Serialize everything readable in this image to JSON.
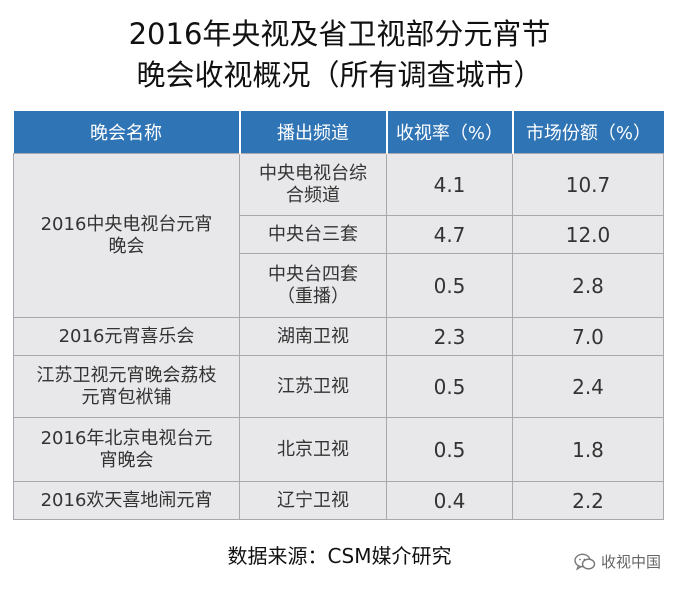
{
  "title": {
    "line1": "2016年央视及省卫视部分元宵节",
    "line2": "晚会收视概况（所有调查城市）"
  },
  "table": {
    "headers": [
      "晚会名称",
      "播出频道",
      "收视率（%）",
      "市场份额（%）"
    ],
    "rows": [
      {
        "program": "2016中央电视台元宵晚会",
        "channel": "中央电视台综合频道",
        "rating": "4.1",
        "share": "10.7"
      },
      {
        "program": "",
        "channel": "中央台三套",
        "rating": "4.7",
        "share": "12.0"
      },
      {
        "program": "",
        "channel": "中央台四套（重播）",
        "rating": "0.5",
        "share": "2.8"
      },
      {
        "program": "2016元宵喜乐会",
        "channel": "湖南卫视",
        "rating": "2.3",
        "share": "7.0"
      },
      {
        "program": "江苏卫视元宵晚会荔枝元宵包袱铺",
        "channel": "江苏卫视",
        "rating": "0.5",
        "share": "2.4"
      },
      {
        "program": "2016年北京电视台元宵晚会",
        "channel": "北京卫视",
        "rating": "0.5",
        "share": "1.8"
      },
      {
        "program": "2016欢天喜地闹元宵",
        "channel": "辽宁卫视",
        "rating": "0.4",
        "share": "2.2"
      }
    ]
  },
  "source": "数据来源：CSM媒介研究",
  "watermark": {
    "text": "收视中国",
    "icon": "wechat-icon"
  }
}
